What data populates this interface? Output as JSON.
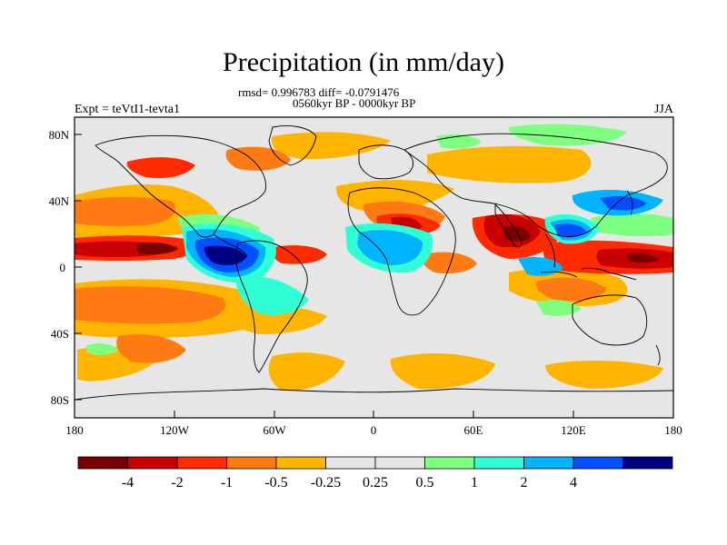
{
  "title": "Precipitation (in mm/day)",
  "stats": "rmsd= 0.996783 diff= -0.0791476",
  "subtitle": "0560kyr BP - 0000kyr BP",
  "left_label": "Expt = teVtI1-tevta1",
  "right_label": "JJA",
  "x_ticks": [
    "180",
    "120W",
    "60W",
    "0",
    "60E",
    "120E",
    "180"
  ],
  "y_ticks": [
    "80N",
    "40N",
    "0",
    "40S",
    "80S"
  ],
  "colorbar": {
    "colors": [
      "#7a0000",
      "#c80000",
      "#ff2a00",
      "#ff7a12",
      "#ffb400",
      "#e6e6e6",
      "#e6e6e6",
      "#7fff7f",
      "#30ffd6",
      "#00b4ff",
      "#0050ff",
      "#000080"
    ],
    "labels": [
      "-4",
      "-2",
      "-1",
      "-0.5",
      "-0.25",
      "0.25",
      "0.5",
      "1",
      "2",
      "4"
    ]
  },
  "colors": {
    "ocean_background": "#e6e6e6",
    "coastline": "#000000"
  }
}
